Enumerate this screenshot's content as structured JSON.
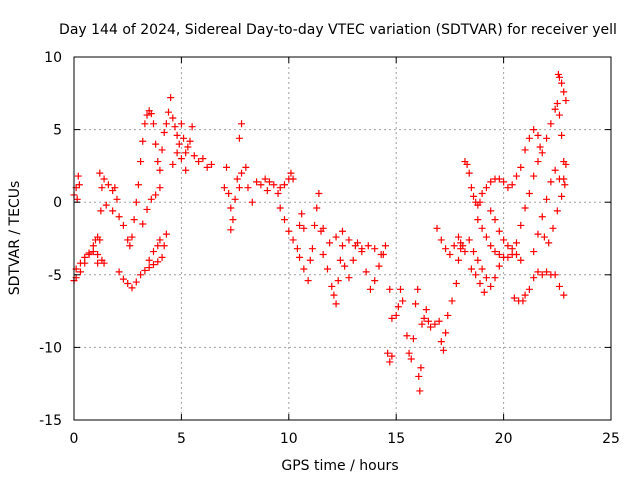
{
  "chart_data": {
    "type": "scatter",
    "title": "Day 144 of 2024, Sidereal Day-to-day VTEC variation (SDTVAR) for receiver yell",
    "xlabel": "GPS time / hours",
    "ylabel": "SDTVAR / TECUs",
    "xlim": [
      0,
      25
    ],
    "ylim": [
      -15,
      10
    ],
    "xticks": [
      0,
      5,
      10,
      15,
      20,
      25
    ],
    "yticks": [
      -15,
      -10,
      -5,
      0,
      5,
      10
    ],
    "xtick_labels": [
      "0",
      "5",
      "10",
      "15",
      "20",
      "25"
    ],
    "ytick_labels": [
      "-15",
      "-10",
      "-5",
      "0",
      "5",
      "10"
    ],
    "grid": true,
    "marker": "+",
    "color": "#ff0000",
    "series": [
      {
        "name": "SDTVAR",
        "points": [
          [
            0.0,
            0.5
          ],
          [
            0.1,
            1.0
          ],
          [
            0.2,
            1.8
          ],
          [
            0.25,
            1.2
          ],
          [
            0.15,
            0.2
          ],
          [
            0.0,
            -5.4
          ],
          [
            0.1,
            -5.2
          ],
          [
            0.3,
            -4.8
          ],
          [
            0.5,
            -4.2
          ],
          [
            0.7,
            -3.6
          ],
          [
            0.9,
            -3.0
          ],
          [
            1.0,
            -2.6
          ],
          [
            1.1,
            -2.4
          ],
          [
            0.1,
            -4.6
          ],
          [
            0.3,
            -4.2
          ],
          [
            0.5,
            -3.8
          ],
          [
            0.7,
            -3.5
          ],
          [
            0.9,
            -3.4
          ],
          [
            1.1,
            -3.6
          ],
          [
            1.3,
            -4.0
          ],
          [
            1.4,
            -4.2
          ],
          [
            1.1,
            -4.2
          ],
          [
            1.2,
            -2.6
          ],
          [
            1.25,
            -0.6
          ],
          [
            1.3,
            1.0
          ],
          [
            1.2,
            2.0
          ],
          [
            1.4,
            1.6
          ],
          [
            1.6,
            1.2
          ],
          [
            1.8,
            0.8
          ],
          [
            1.9,
            1.0
          ],
          [
            2.0,
            0.2
          ],
          [
            1.5,
            -0.2
          ],
          [
            1.8,
            -0.6
          ],
          [
            2.1,
            -1.0
          ],
          [
            2.3,
            -1.6
          ],
          [
            2.5,
            -2.6
          ],
          [
            2.6,
            -3.0
          ],
          [
            2.7,
            -2.4
          ],
          [
            2.8,
            -1.2
          ],
          [
            2.9,
            0.0
          ],
          [
            3.0,
            1.2
          ],
          [
            3.1,
            2.8
          ],
          [
            3.2,
            4.2
          ],
          [
            3.3,
            5.4
          ],
          [
            3.4,
            6.0
          ],
          [
            3.5,
            6.3
          ],
          [
            3.6,
            6.1
          ],
          [
            3.7,
            5.4
          ],
          [
            3.8,
            4.0
          ],
          [
            3.9,
            2.8
          ],
          [
            3.2,
            -1.5
          ],
          [
            3.4,
            -0.5
          ],
          [
            3.6,
            0.2
          ],
          [
            3.8,
            0.5
          ],
          [
            4.0,
            1.0
          ],
          [
            2.1,
            -4.8
          ],
          [
            2.3,
            -5.3
          ],
          [
            2.5,
            -5.6
          ],
          [
            2.7,
            -5.9
          ],
          [
            2.9,
            -5.5
          ],
          [
            3.1,
            -5.0
          ],
          [
            3.3,
            -4.7
          ],
          [
            3.5,
            -4.5
          ],
          [
            3.7,
            -4.3
          ],
          [
            3.9,
            -4.1
          ],
          [
            4.1,
            -3.8
          ],
          [
            4.2,
            -3.0
          ],
          [
            4.3,
            -2.2
          ],
          [
            3.5,
            -4.0
          ],
          [
            3.7,
            -3.4
          ],
          [
            3.9,
            -3.0
          ],
          [
            4.0,
            -2.6
          ],
          [
            4.0,
            2.2
          ],
          [
            4.1,
            3.6
          ],
          [
            4.2,
            4.8
          ],
          [
            4.3,
            5.4
          ],
          [
            4.4,
            6.2
          ],
          [
            4.5,
            7.2
          ],
          [
            4.6,
            5.8
          ],
          [
            4.7,
            5.2
          ],
          [
            4.8,
            4.6
          ],
          [
            4.9,
            4.0
          ],
          [
            5.0,
            5.4
          ],
          [
            5.1,
            4.4
          ],
          [
            5.2,
            3.4
          ],
          [
            5.3,
            3.8
          ],
          [
            5.4,
            4.2
          ],
          [
            5.5,
            5.2
          ],
          [
            5.6,
            3.2
          ],
          [
            5.8,
            2.8
          ],
          [
            6.0,
            3.0
          ],
          [
            6.2,
            2.4
          ],
          [
            6.4,
            2.6
          ],
          [
            4.6,
            2.6
          ],
          [
            4.8,
            3.4
          ],
          [
            5.0,
            3.0
          ],
          [
            5.2,
            2.2
          ],
          [
            7.0,
            1.0
          ],
          [
            7.1,
            2.4
          ],
          [
            7.2,
            0.6
          ],
          [
            7.3,
            -0.4
          ],
          [
            7.4,
            -1.2
          ],
          [
            7.5,
            0.2
          ],
          [
            7.6,
            1.6
          ],
          [
            7.7,
            4.4
          ],
          [
            7.8,
            5.4
          ],
          [
            7.7,
            1.0
          ],
          [
            7.8,
            2.0
          ],
          [
            8.0,
            2.4
          ],
          [
            8.1,
            1.0
          ],
          [
            7.3,
            -1.9
          ],
          [
            8.3,
            0.0
          ],
          [
            8.5,
            1.4
          ],
          [
            8.7,
            1.2
          ],
          [
            8.9,
            1.6
          ],
          [
            9.0,
            0.8
          ],
          [
            9.1,
            1.4
          ],
          [
            9.3,
            1.2
          ],
          [
            9.5,
            0.6
          ],
          [
            9.6,
            1.0
          ],
          [
            9.8,
            1.2
          ],
          [
            10.0,
            1.6
          ],
          [
            10.1,
            2.0
          ],
          [
            10.2,
            1.6
          ],
          [
            9.6,
            -0.4
          ],
          [
            9.8,
            -1.2
          ],
          [
            10.0,
            -2.0
          ],
          [
            10.2,
            -2.6
          ],
          [
            10.4,
            -3.2
          ],
          [
            10.5,
            -1.6
          ],
          [
            10.6,
            -0.8
          ],
          [
            10.7,
            -1.8
          ],
          [
            10.5,
            -3.8
          ],
          [
            10.7,
            -4.6
          ],
          [
            10.9,
            -5.4
          ],
          [
            11.0,
            -4.0
          ],
          [
            11.1,
            -3.2
          ],
          [
            11.2,
            -1.6
          ],
          [
            11.3,
            -0.4
          ],
          [
            11.4,
            0.6
          ],
          [
            11.5,
            -2.0
          ],
          [
            11.6,
            -3.6
          ],
          [
            11.8,
            -4.6
          ],
          [
            12.0,
            -5.8
          ],
          [
            12.1,
            -6.4
          ],
          [
            12.2,
            -7.0
          ],
          [
            12.3,
            -5.4
          ],
          [
            12.4,
            -4.0
          ],
          [
            12.5,
            -3.0
          ],
          [
            12.6,
            -4.4
          ],
          [
            12.8,
            -5.2
          ],
          [
            13.0,
            -4.0
          ],
          [
            13.2,
            -2.8
          ],
          [
            13.4,
            -3.2
          ],
          [
            13.6,
            -4.8
          ],
          [
            13.8,
            -6.0
          ],
          [
            14.0,
            -5.4
          ],
          [
            14.2,
            -4.4
          ],
          [
            14.4,
            -3.6
          ],
          [
            14.5,
            -3.0
          ],
          [
            11.6,
            -1.8
          ],
          [
            11.9,
            -2.8
          ],
          [
            12.2,
            -2.4
          ],
          [
            12.5,
            -2.0
          ],
          [
            12.8,
            -2.6
          ],
          [
            13.1,
            -3.0
          ],
          [
            13.4,
            -3.4
          ],
          [
            13.7,
            -3.0
          ],
          [
            14.0,
            -3.2
          ],
          [
            14.3,
            -3.6
          ],
          [
            14.6,
            -10.4
          ],
          [
            14.7,
            -11.0
          ],
          [
            14.8,
            -10.6
          ],
          [
            14.7,
            -6.0
          ],
          [
            14.8,
            -8.0
          ],
          [
            15.0,
            -7.8
          ],
          [
            15.1,
            -7.2
          ],
          [
            15.2,
            -6.0
          ],
          [
            15.3,
            -6.8
          ],
          [
            15.5,
            -9.2
          ],
          [
            15.6,
            -10.4
          ],
          [
            15.7,
            -10.8
          ],
          [
            15.8,
            -9.4
          ],
          [
            15.9,
            -7.0
          ],
          [
            16.0,
            -6.0
          ],
          [
            16.05,
            -12.0
          ],
          [
            16.1,
            -13.0
          ],
          [
            16.15,
            -11.4
          ],
          [
            16.2,
            -8.4
          ],
          [
            16.3,
            -8.0
          ],
          [
            16.4,
            -7.4
          ],
          [
            16.5,
            -8.2
          ],
          [
            16.6,
            -8.6
          ],
          [
            16.8,
            -8.4
          ],
          [
            17.0,
            -8.2
          ],
          [
            17.1,
            -9.6
          ],
          [
            17.2,
            -10.2
          ],
          [
            17.3,
            -9.0
          ],
          [
            17.4,
            -7.8
          ],
          [
            17.6,
            -6.8
          ],
          [
            17.8,
            -5.6
          ],
          [
            17.9,
            -4.0
          ],
          [
            18.0,
            -3.2
          ],
          [
            18.1,
            -3.0
          ],
          [
            16.9,
            -1.8
          ],
          [
            17.1,
            -2.6
          ],
          [
            17.3,
            -3.2
          ],
          [
            17.5,
            -3.6
          ],
          [
            17.7,
            -3.0
          ],
          [
            17.9,
            -2.4
          ],
          [
            18.0,
            -2.8
          ],
          [
            18.2,
            -3.4
          ],
          [
            18.2,
            2.8
          ],
          [
            18.3,
            2.6
          ],
          [
            18.4,
            2.0
          ],
          [
            18.5,
            1.0
          ],
          [
            18.6,
            0.4
          ],
          [
            18.7,
            0.0
          ],
          [
            18.8,
            -0.2
          ],
          [
            18.9,
            0.0
          ],
          [
            19.0,
            0.6
          ],
          [
            19.2,
            1.0
          ],
          [
            19.4,
            1.4
          ],
          [
            19.6,
            1.6
          ],
          [
            19.8,
            1.6
          ],
          [
            20.0,
            1.4
          ],
          [
            20.2,
            1.0
          ],
          [
            20.4,
            1.2
          ],
          [
            20.6,
            1.8
          ],
          [
            20.8,
            2.4
          ],
          [
            21.0,
            3.6
          ],
          [
            21.2,
            4.4
          ],
          [
            21.4,
            5.0
          ],
          [
            21.6,
            4.6
          ],
          [
            21.7,
            3.8
          ],
          [
            18.4,
            -2.6
          ],
          [
            18.6,
            -3.4
          ],
          [
            18.8,
            -4.0
          ],
          [
            19.0,
            -4.6
          ],
          [
            19.2,
            -5.2
          ],
          [
            19.4,
            -5.8
          ],
          [
            19.6,
            -5.2
          ],
          [
            19.8,
            -4.4
          ],
          [
            18.5,
            -4.6
          ],
          [
            18.7,
            -5.0
          ],
          [
            18.9,
            -5.6
          ],
          [
            19.1,
            -6.2
          ],
          [
            18.8,
            -1.2
          ],
          [
            19.0,
            -1.8
          ],
          [
            19.2,
            -2.4
          ],
          [
            19.4,
            -3.0
          ],
          [
            19.6,
            -3.4
          ],
          [
            19.8,
            -3.6
          ],
          [
            20.0,
            -3.8
          ],
          [
            20.2,
            -3.8
          ],
          [
            20.4,
            -3.6
          ],
          [
            20.6,
            -2.8
          ],
          [
            20.8,
            -1.6
          ],
          [
            21.0,
            -0.4
          ],
          [
            21.2,
            0.6
          ],
          [
            21.4,
            1.8
          ],
          [
            21.6,
            2.8
          ],
          [
            21.8,
            3.4
          ],
          [
            22.0,
            4.4
          ],
          [
            22.2,
            5.4
          ],
          [
            22.4,
            6.4
          ],
          [
            22.5,
            6.8
          ],
          [
            22.6,
            6.0
          ],
          [
            22.7,
            4.6
          ],
          [
            22.8,
            2.8
          ],
          [
            22.85,
            1.2
          ],
          [
            19.4,
            -0.6
          ],
          [
            19.6,
            -1.2
          ],
          [
            19.8,
            -2.0
          ],
          [
            20.0,
            -2.6
          ],
          [
            20.2,
            -3.0
          ],
          [
            20.4,
            -3.2
          ],
          [
            20.6,
            -3.6
          ],
          [
            20.8,
            -4.0
          ],
          [
            20.5,
            -6.6
          ],
          [
            20.7,
            -6.8
          ],
          [
            20.9,
            -6.8
          ],
          [
            21.0,
            -6.4
          ],
          [
            21.2,
            -6.0
          ],
          [
            21.4,
            -5.2
          ],
          [
            21.6,
            -4.8
          ],
          [
            21.8,
            -5.0
          ],
          [
            22.0,
            -4.8
          ],
          [
            22.2,
            -5.0
          ],
          [
            22.4,
            -5.0
          ],
          [
            22.6,
            -5.8
          ],
          [
            22.8,
            -6.4
          ],
          [
            21.4,
            -3.4
          ],
          [
            21.6,
            -2.2
          ],
          [
            21.8,
            -1.0
          ],
          [
            22.0,
            0.2
          ],
          [
            22.2,
            1.4
          ],
          [
            22.4,
            2.2
          ],
          [
            22.6,
            1.6
          ],
          [
            22.7,
            0.4
          ],
          [
            22.8,
            1.6
          ],
          [
            22.9,
            2.6
          ],
          [
            21.9,
            -2.4
          ],
          [
            22.1,
            -2.8
          ],
          [
            22.3,
            -1.8
          ],
          [
            22.5,
            -0.6
          ],
          [
            22.55,
            8.8
          ],
          [
            22.6,
            8.6
          ],
          [
            22.7,
            8.2
          ],
          [
            22.8,
            7.6
          ],
          [
            22.9,
            7.0
          ]
        ]
      }
    ]
  }
}
